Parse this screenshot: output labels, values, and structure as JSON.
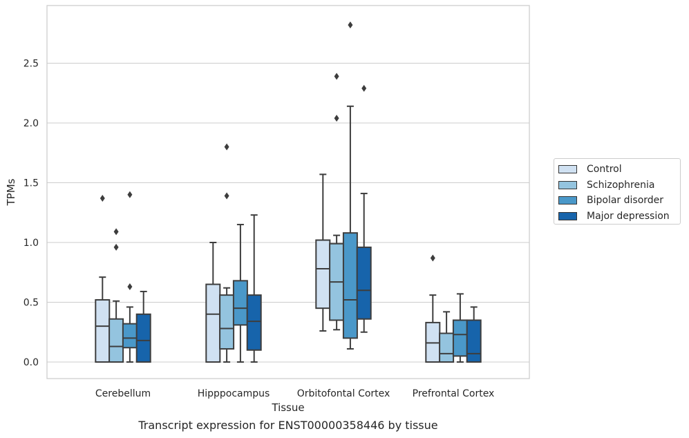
{
  "chart_data": {
    "type": "box",
    "caption": "Transcript expression for ENST00000358446 by tissue",
    "xlabel": "Tissue",
    "ylabel": "TPMs",
    "ylim": [
      -0.14,
      2.97
    ],
    "yticks": [
      0.0,
      0.5,
      1.0,
      1.5,
      2.0,
      2.5
    ],
    "ytick_labels": [
      "0.0",
      "0.5",
      "1.0",
      "1.5",
      "2.0",
      "2.5"
    ],
    "grid": "horizontal",
    "legend_position": "right",
    "categories": [
      "Cerebellum",
      "Hipppocampus",
      "Orbitofontal Cortex",
      "Prefrontal Cortex"
    ],
    "series": [
      {
        "name": "Control",
        "color": "#d0e1f2",
        "boxes": [
          {
            "whisker_low": 0.0,
            "q1": 0.0,
            "median": 0.3,
            "q3": 0.52,
            "whisker_high": 0.71,
            "outliers": [
              1.37
            ]
          },
          {
            "whisker_low": 0.0,
            "q1": 0.0,
            "median": 0.4,
            "q3": 0.65,
            "whisker_high": 1.0,
            "outliers": []
          },
          {
            "whisker_low": 0.26,
            "q1": 0.45,
            "median": 0.78,
            "q3": 1.02,
            "whisker_high": 1.57,
            "outliers": []
          },
          {
            "whisker_low": 0.0,
            "q1": 0.0,
            "median": 0.16,
            "q3": 0.33,
            "whisker_high": 0.56,
            "outliers": [
              0.87
            ]
          }
        ]
      },
      {
        "name": "Schizophrenia",
        "color": "#94c4df",
        "boxes": [
          {
            "whisker_low": 0.0,
            "q1": 0.0,
            "median": 0.13,
            "q3": 0.36,
            "whisker_high": 0.51,
            "outliers": [
              0.96,
              1.09
            ]
          },
          {
            "whisker_low": 0.0,
            "q1": 0.11,
            "median": 0.28,
            "q3": 0.56,
            "whisker_high": 0.62,
            "outliers": [
              1.39,
              1.8
            ]
          },
          {
            "whisker_low": 0.27,
            "q1": 0.35,
            "median": 0.67,
            "q3": 0.99,
            "whisker_high": 1.06,
            "outliers": [
              2.04,
              2.39
            ]
          },
          {
            "whisker_low": 0.0,
            "q1": 0.0,
            "median": 0.07,
            "q3": 0.24,
            "whisker_high": 0.42,
            "outliers": []
          }
        ]
      },
      {
        "name": "Bipolar disorder",
        "color": "#4a98c9",
        "boxes": [
          {
            "whisker_low": 0.0,
            "q1": 0.12,
            "median": 0.2,
            "q3": 0.32,
            "whisker_high": 0.46,
            "outliers": [
              0.63,
              1.4
            ]
          },
          {
            "whisker_low": 0.0,
            "q1": 0.31,
            "median": 0.45,
            "q3": 0.68,
            "whisker_high": 1.15,
            "outliers": []
          },
          {
            "whisker_low": 0.11,
            "q1": 0.2,
            "median": 0.52,
            "q3": 1.08,
            "whisker_high": 2.14,
            "outliers": [
              2.82
            ]
          },
          {
            "whisker_low": 0.0,
            "q1": 0.05,
            "median": 0.23,
            "q3": 0.35,
            "whisker_high": 0.57,
            "outliers": []
          }
        ]
      },
      {
        "name": "Major depression",
        "color": "#1764ab",
        "boxes": [
          {
            "whisker_low": 0.0,
            "q1": 0.0,
            "median": 0.18,
            "q3": 0.4,
            "whisker_high": 0.59,
            "outliers": []
          },
          {
            "whisker_low": 0.0,
            "q1": 0.1,
            "median": 0.34,
            "q3": 0.56,
            "whisker_high": 1.23,
            "outliers": []
          },
          {
            "whisker_low": 0.25,
            "q1": 0.36,
            "median": 0.6,
            "q3": 0.96,
            "whisker_high": 1.41,
            "outliers": [
              2.29
            ]
          },
          {
            "whisker_low": 0.0,
            "q1": 0.0,
            "median": 0.07,
            "q3": 0.35,
            "whisker_high": 0.46,
            "outliers": []
          }
        ]
      }
    ]
  }
}
